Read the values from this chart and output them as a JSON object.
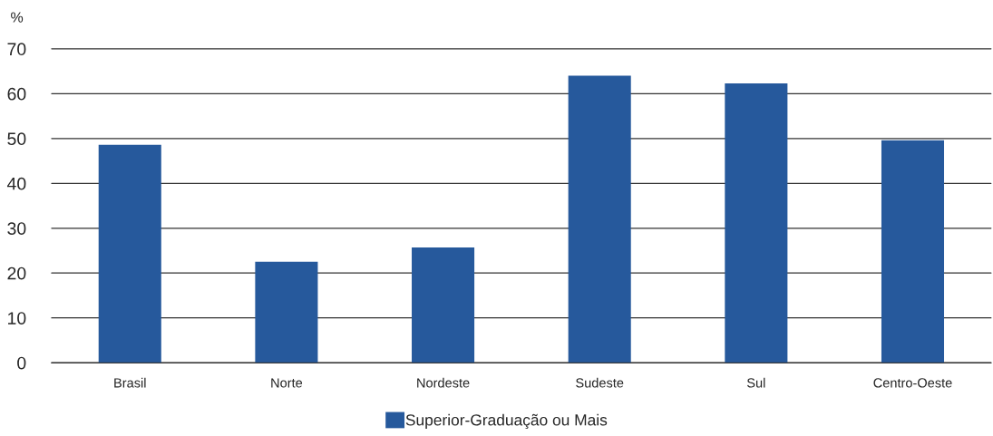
{
  "chart_data": {
    "type": "bar",
    "ylabel": "%",
    "categories": [
      "Brasil",
      "Norte",
      "Nordeste",
      "Sudeste",
      "Sul",
      "Centro-Oeste"
    ],
    "series": [
      {
        "name": "Superior-Graduação ou Mais",
        "color": "#26599c",
        "values": [
          48.6,
          22.5,
          25.7,
          64.0,
          62.3,
          49.6
        ]
      }
    ],
    "ylim": [
      0,
      70
    ],
    "yticks": [
      0,
      10,
      20,
      30,
      40,
      50,
      60,
      70
    ],
    "grid": "y",
    "legend": "bottom"
  }
}
